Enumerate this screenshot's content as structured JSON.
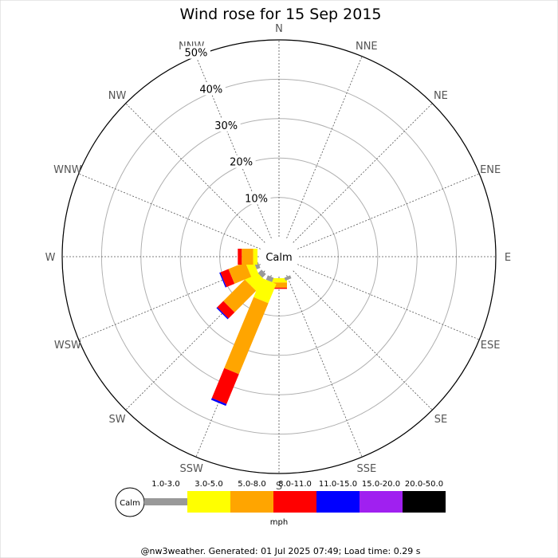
{
  "chart_data": {
    "type": "wind-rose",
    "title": "Wind rose for 15 Sep 2015",
    "directions": [
      "N",
      "NNE",
      "NE",
      "ENE",
      "E",
      "ESE",
      "SE",
      "SSE",
      "S",
      "SSW",
      "SW",
      "WSW",
      "W",
      "WNW",
      "NW",
      "NNW"
    ],
    "radial_ticks": [
      "10%",
      "20%",
      "30%",
      "40%",
      "50%"
    ],
    "radial_max": 50,
    "calm_label": "Calm",
    "legend_unit": "mph",
    "speed_bins": [
      {
        "label": "1.0-3.0",
        "color": "#999999"
      },
      {
        "label": "3.0-5.0",
        "color": "#ffff00"
      },
      {
        "label": "5.0-8.0",
        "color": "#ffa500"
      },
      {
        "label": "8.0-11.0",
        "color": "#ff0000"
      },
      {
        "label": "11.0-15.0",
        "color": "#0000ff"
      },
      {
        "label": "15.0-20.0",
        "color": "#a020f0"
      },
      {
        "label": "20.0-50.0",
        "color": "#000000"
      }
    ],
    "series": [
      {
        "direction": "S",
        "percent_by_bin": [
          0.0,
          1.1,
          1.3,
          0.3,
          0,
          0,
          0
        ]
      },
      {
        "direction": "SSW",
        "percent_by_bin": [
          1.2,
          5.3,
          19.5,
          8.2,
          0.5,
          0,
          0
        ]
      },
      {
        "direction": "SW",
        "percent_by_bin": [
          1.3,
          3.5,
          7.7,
          2.2,
          0.3,
          0,
          0
        ]
      },
      {
        "direction": "WSW",
        "percent_by_bin": [
          1.0,
          2.0,
          4.6,
          2.2,
          0.3,
          0,
          0
        ]
      },
      {
        "direction": "W",
        "percent_by_bin": [
          0.0,
          1.1,
          2.9,
          1.0,
          0,
          0,
          0
        ]
      },
      {
        "direction": "SSE",
        "percent_by_bin": [
          0.8,
          0,
          0,
          0,
          0,
          0,
          0
        ]
      }
    ]
  },
  "footer": "@nw3weather. Generated: 01 Jul 2025 07:49; Load time: 0.29 s"
}
